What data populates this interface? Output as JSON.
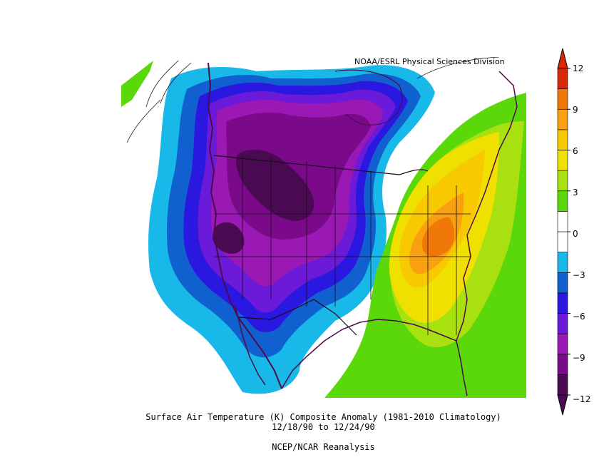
{
  "credit": "NOAA/ESRL Physical Sciences Division",
  "caption": {
    "line1": "Surface Air Temperature (K) Composite Anomaly (1981-2010 Climatology)",
    "line2": "12/18/90  to 12/24/90",
    "line3": "NCEP/NCAR Reanalysis"
  },
  "colorbar": {
    "ticks": [
      "12",
      "9",
      "6",
      "3",
      "0",
      "−3",
      "−6",
      "−9",
      "−12"
    ],
    "colors": [
      "#4a0a52",
      "#7a0a8a",
      "#9a18b4",
      "#6a1ad8",
      "#2a18e0",
      "#1060d0",
      "#18b8e8",
      "#ffffff",
      "#ffffff",
      "#5ad80a",
      "#a8e010",
      "#f0e000",
      "#f8c800",
      "#f8a010",
      "#f07808",
      "#d82808"
    ]
  },
  "palette": {
    "ocean": "#ffffff",
    "coast": "#4d0a4d",
    "cold_dark": "#4a0a52",
    "warm_peak": "#f07808"
  }
}
